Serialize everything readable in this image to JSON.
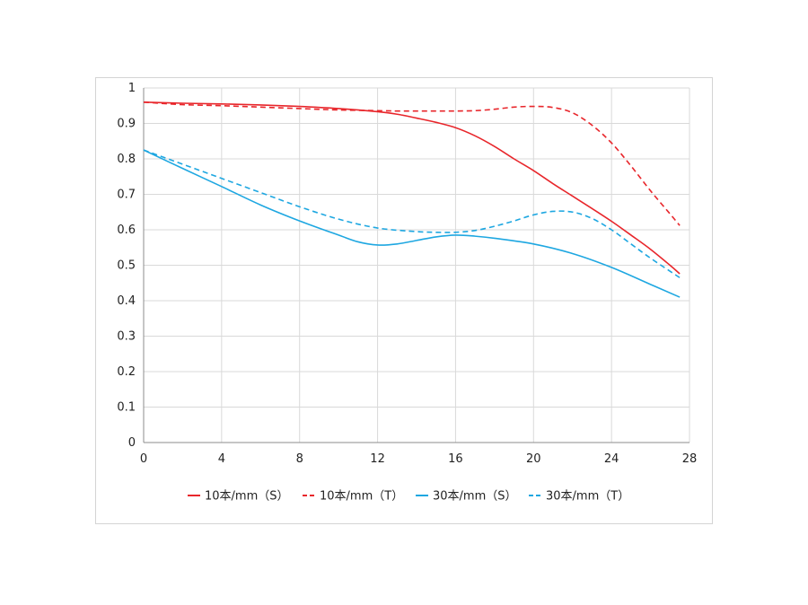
{
  "chart_data": {
    "type": "line",
    "xlim": [
      0,
      28
    ],
    "ylim": [
      0,
      1
    ],
    "x_ticks": [
      "0",
      "4",
      "8",
      "12",
      "16",
      "20",
      "24",
      "28"
    ],
    "y_ticks": [
      "0",
      "0.1",
      "0.2",
      "0.3",
      "0.4",
      "0.5",
      "0.6",
      "0.7",
      "0.8",
      "0.9",
      "1"
    ],
    "grid": true,
    "legend_position": "bottom",
    "series": [
      {
        "name": "10本/mm（S）",
        "color": "#e8262b",
        "dash": "solid",
        "x": [
          0,
          2,
          4,
          6,
          8,
          10,
          12,
          13,
          14,
          15,
          16,
          17,
          18,
          19,
          20,
          21,
          22,
          23,
          24,
          25,
          26,
          27,
          27.5
        ],
        "y": [
          0.96,
          0.957,
          0.955,
          0.952,
          0.948,
          0.942,
          0.933,
          0.926,
          0.915,
          0.903,
          0.888,
          0.865,
          0.835,
          0.8,
          0.767,
          0.73,
          0.695,
          0.66,
          0.624,
          0.585,
          0.545,
          0.5,
          0.476
        ]
      },
      {
        "name": "10本/mm（T）",
        "color": "#e8262b",
        "dash": "dashed",
        "x": [
          0,
          2,
          4,
          6,
          8,
          10,
          12,
          13,
          14,
          15,
          16,
          17,
          18,
          19,
          20,
          21,
          22,
          23,
          24,
          25,
          26,
          27,
          27.5
        ],
        "y": [
          0.96,
          0.953,
          0.95,
          0.946,
          0.942,
          0.938,
          0.936,
          0.935,
          0.935,
          0.935,
          0.935,
          0.936,
          0.94,
          0.946,
          0.948,
          0.945,
          0.93,
          0.895,
          0.845,
          0.78,
          0.71,
          0.645,
          0.612
        ]
      },
      {
        "name": "30本/mm（S）",
        "color": "#1ea7e1",
        "dash": "solid",
        "x": [
          0,
          2,
          4,
          6,
          8,
          10,
          11,
          12,
          13,
          14,
          15,
          16,
          17,
          18,
          20,
          22,
          24,
          26,
          27.5
        ],
        "y": [
          0.825,
          0.773,
          0.722,
          0.67,
          0.625,
          0.585,
          0.566,
          0.557,
          0.56,
          0.57,
          0.58,
          0.585,
          0.582,
          0.576,
          0.56,
          0.533,
          0.494,
          0.446,
          0.41
        ]
      },
      {
        "name": "30本/mm（T）",
        "color": "#1ea7e1",
        "dash": "dashed",
        "x": [
          0,
          2,
          4,
          6,
          8,
          10,
          12,
          14,
          15,
          16,
          17,
          18,
          19,
          20,
          21,
          22,
          23,
          24,
          25,
          26,
          27.5
        ],
        "y": [
          0.825,
          0.785,
          0.745,
          0.705,
          0.665,
          0.63,
          0.605,
          0.595,
          0.593,
          0.593,
          0.598,
          0.61,
          0.625,
          0.642,
          0.652,
          0.65,
          0.632,
          0.6,
          0.56,
          0.52,
          0.465
        ]
      }
    ]
  }
}
